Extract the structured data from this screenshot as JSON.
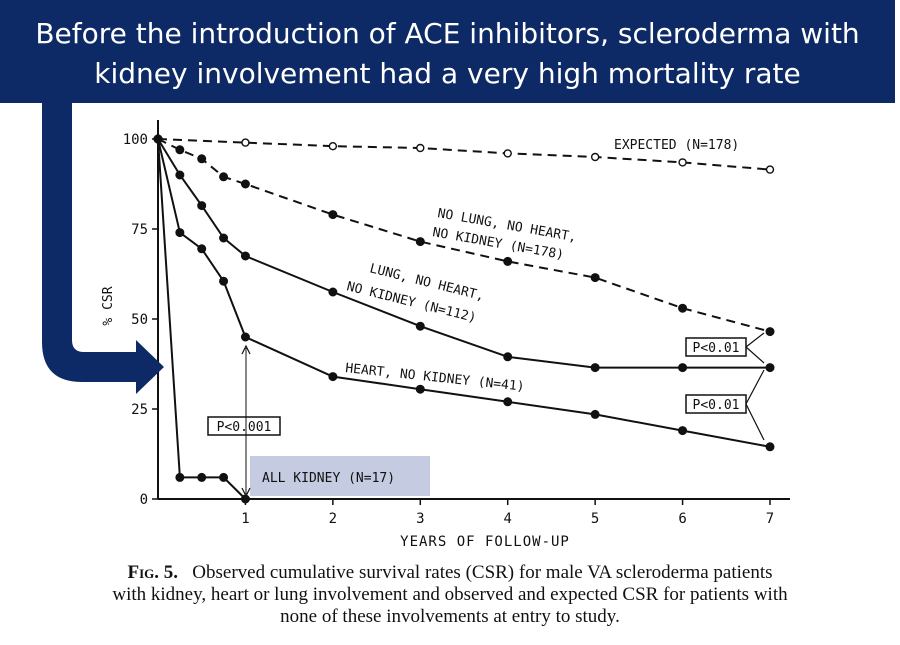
{
  "banner": {
    "line1": "Before the introduction of ACE inhibitors, scleroderma with",
    "line2": "kidney involvement had a very high mortality rate"
  },
  "colors": {
    "banner": "#0d2a66",
    "arrow": "#0d2a66",
    "ink": "#111111",
    "highlight": "#c5cbe0"
  },
  "chart_data": {
    "type": "line",
    "xlabel": "YEARS OF FOLLOW-UP",
    "ylabel": "% CSR",
    "xlim": [
      0,
      7
    ],
    "ylim": [
      0,
      100
    ],
    "x_ticks": [
      "1",
      "2",
      "3",
      "4",
      "5",
      "6",
      "7"
    ],
    "y_ticks": [
      "0",
      "25",
      "50",
      "75",
      "100"
    ],
    "series": [
      {
        "name": "EXPECTED (N=178)",
        "style": "dashed",
        "marker": "open",
        "x": [
          0,
          1,
          2,
          3,
          4,
          5,
          6,
          7
        ],
        "y": [
          100,
          99,
          98,
          97.5,
          96,
          95,
          93.5,
          91.5
        ]
      },
      {
        "name": "NO LUNG, NO HEART, NO KIDNEY (N=178)",
        "style": "dashed",
        "marker": "filled",
        "x": [
          0,
          0.25,
          0.5,
          0.75,
          1,
          2,
          3,
          4,
          5,
          6,
          7
        ],
        "y": [
          100,
          97,
          94.5,
          89.5,
          87.5,
          79,
          71.5,
          66,
          61.5,
          53,
          46.5
        ]
      },
      {
        "name": "LUNG, NO HEART, NO KIDNEY (N=112)",
        "style": "solid",
        "marker": "filled",
        "x": [
          0,
          0.25,
          0.5,
          0.75,
          1,
          2,
          3,
          4,
          5,
          6,
          7
        ],
        "y": [
          100,
          90,
          81.5,
          72.5,
          67.5,
          57.5,
          48,
          39.5,
          36.5,
          36.5,
          36.5
        ]
      },
      {
        "name": "HEART, NO KIDNEY (N=41)",
        "style": "solid",
        "marker": "filled",
        "x": [
          0,
          0.25,
          0.5,
          0.75,
          1,
          2,
          3,
          4,
          5,
          6,
          7
        ],
        "y": [
          100,
          74,
          69.5,
          60.5,
          45,
          34,
          30.5,
          27,
          23.5,
          19,
          14.5
        ]
      },
      {
        "name": "ALL KIDNEY (N=17)",
        "style": "solid",
        "marker": "filled",
        "x": [
          0,
          0.25,
          0.5,
          0.75,
          1
        ],
        "y": [
          100,
          6,
          6,
          6,
          0
        ]
      }
    ],
    "labels": {
      "expected": "EXPECTED (N=178)",
      "none_line1": "NO LUNG, NO HEART,",
      "none_line2": "NO KIDNEY (N=178)",
      "lung_line1": "LUNG, NO HEART,",
      "lung_line2": "NO KIDNEY (N=112)",
      "heart": "HEART, NO KIDNEY (N=41)",
      "kidney": "ALL KIDNEY (N=17)"
    },
    "annotations": {
      "p_kidney": "P<0.001",
      "p_upper": "P<0.01",
      "p_lower": "P<0.01"
    }
  },
  "caption": {
    "fig_label": "Fig. 5.",
    "line1": "Observed cumulative survival rates (CSR) for male VA scleroderma patients",
    "line2": "with kidney, heart or lung involvement and observed and expected CSR for patients with",
    "line3": "none of these involvements at entry to study."
  }
}
